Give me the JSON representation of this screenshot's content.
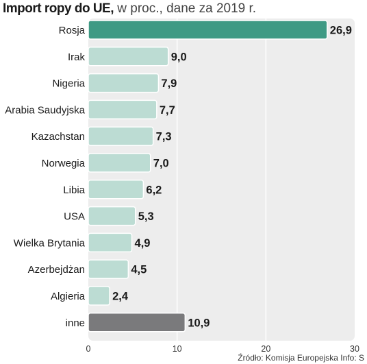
{
  "title": {
    "bold": "Import ropy do UE,",
    "light": " w proc., dane za 2019 r."
  },
  "source": "Źródło: Komisja Europejska  Info: S",
  "colors": {
    "highlight": "#3e9a84",
    "standard": "#bcdcd3",
    "other": "#7a7a7c",
    "plot_bg": "#ededed",
    "grid": "#ffffff"
  },
  "chart_data": {
    "type": "bar",
    "orientation": "horizontal",
    "categories": [
      "Rosja",
      "Irak",
      "Nigeria",
      "Arabia Saudyjska",
      "Kazachstan",
      "Norwegia",
      "Libia",
      "USA",
      "Wielka Brytania",
      "Azerbejdżan",
      "Algieria",
      "inne"
    ],
    "values": [
      26.9,
      9.0,
      7.9,
      7.7,
      7.3,
      7.0,
      6.2,
      5.3,
      4.9,
      4.5,
      2.4,
      10.9
    ],
    "value_labels": [
      "26,9",
      "9,0",
      "7,9",
      "7,7",
      "7,3",
      "7,0",
      "6,2",
      "5,3",
      "4,9",
      "4,5",
      "2,4",
      "10,9"
    ],
    "bar_styles": [
      "highlight",
      "standard",
      "standard",
      "standard",
      "standard",
      "standard",
      "standard",
      "standard",
      "standard",
      "standard",
      "standard",
      "other"
    ],
    "x_ticks": [
      0,
      10,
      20,
      30
    ],
    "x_tick_labels": [
      "0",
      "10",
      "20",
      "30"
    ],
    "xlim": [
      0,
      30
    ],
    "xlabel": "",
    "ylabel": "",
    "grid": true,
    "legend": "none"
  }
}
